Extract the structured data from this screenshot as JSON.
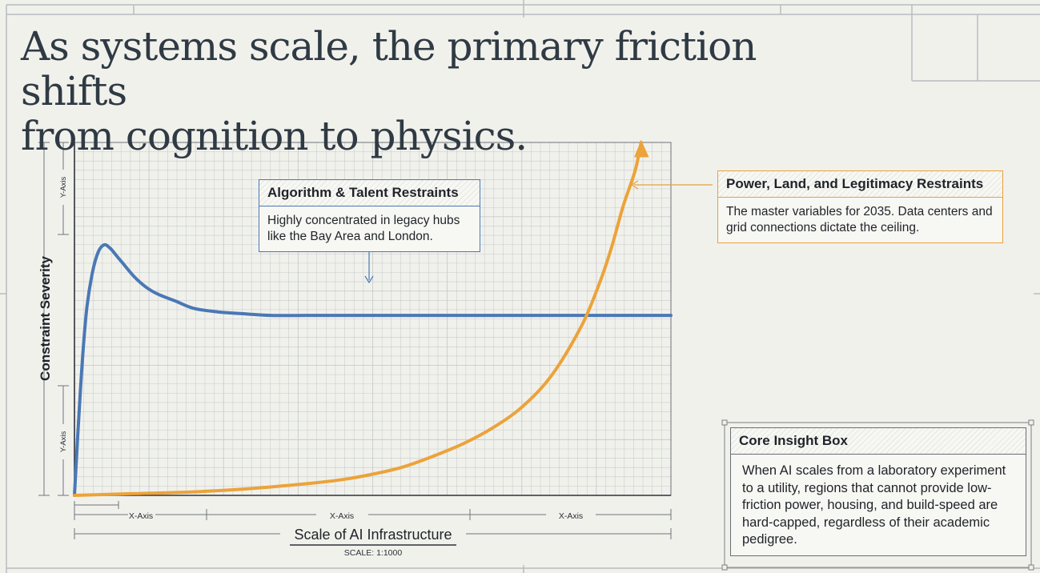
{
  "headline": {
    "line1": "As systems scale, the primary friction shifts",
    "line2": "from cognition to physics."
  },
  "colors": {
    "algorithm_series": "#4a78b5",
    "power_series": "#eba33a",
    "grid": "#c7cbcd",
    "background": "#f1f1ec"
  },
  "callouts": {
    "talent": {
      "title": "Algorithm & Talent Restraints",
      "body": "Highly concentrated in legacy hubs like the Bay Area and London."
    },
    "power": {
      "title": "Power, Land, and Legitimacy Restraints",
      "body": "The master variables for 2035. Data centers and grid connections dictate the ceiling."
    },
    "insight": {
      "title": "Core Insight Box",
      "body": "When AI scales from a laboratory experiment to a utility, regions that cannot provide low-friction power, housing, and build-speed are hard-capped, regardless of their academic pedigree."
    }
  },
  "chart_data": {
    "type": "line",
    "title": "",
    "xlabel": "Scale of AI Infrastructure",
    "ylabel": "Constraint Severity",
    "scale_note": "SCALE: 1:1000",
    "x_dimension_labels": [
      "X-Axis",
      "X-Axis",
      "X-Axis"
    ],
    "y_dimension_labels": [
      "Y-Axis",
      "Y-Axis"
    ],
    "xlim": [
      0,
      100
    ],
    "ylim": [
      0,
      100
    ],
    "grid": true,
    "series": [
      {
        "name": "Algorithm & Talent Restraints",
        "color": "#4a78b5",
        "x": [
          0,
          1,
          2,
          3,
          4,
          5,
          6,
          7,
          8,
          10,
          12,
          14,
          17,
          20,
          24,
          28,
          33,
          40,
          50,
          60,
          70,
          80,
          90,
          100
        ],
        "y": [
          0,
          30,
          52,
          63,
          69,
          71,
          70,
          68,
          66,
          62,
          59,
          57,
          55,
          53,
          52,
          51.5,
          51,
          51,
          51,
          51,
          51,
          51,
          51,
          51
        ]
      },
      {
        "name": "Power, Land, and Legitimacy Restraints",
        "color": "#eba33a",
        "x": [
          0,
          10,
          20,
          30,
          40,
          45,
          50,
          55,
          60,
          65,
          70,
          75,
          80,
          85,
          88,
          90,
          92,
          94,
          95
        ],
        "y": [
          0,
          0.5,
          1,
          2,
          3.5,
          4.5,
          6,
          8,
          11,
          14.5,
          19,
          25,
          34,
          48,
          60,
          70,
          82,
          92,
          100
        ]
      }
    ]
  }
}
